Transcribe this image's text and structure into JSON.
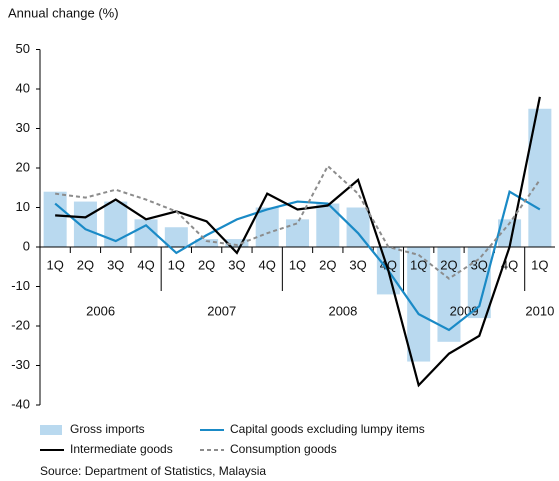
{
  "chart_data": {
    "type": "bar_line",
    "y_axis_label": "Annual change (%)",
    "categories": [
      "1Q",
      "2Q",
      "3Q",
      "4Q",
      "1Q",
      "2Q",
      "3Q",
      "4Q",
      "1Q",
      "2Q",
      "3Q",
      "4Q",
      "1Q",
      "2Q",
      "3Q",
      "4Q",
      "1Q"
    ],
    "years": [
      "2006",
      "2007",
      "2008",
      "2009",
      "2010"
    ],
    "ylim": [
      -40,
      50
    ],
    "yticks": [
      -40,
      -30,
      -20,
      -10,
      0,
      10,
      20,
      30,
      40,
      50
    ],
    "series": [
      {
        "name": "Gross imports",
        "kind": "bar",
        "color": "#b9d9ef",
        "values": [
          14,
          11.5,
          11.5,
          7,
          5,
          2,
          2,
          10,
          7,
          11,
          10,
          -12,
          -29,
          -24,
          -18,
          7,
          35
        ]
      },
      {
        "name": "Capital goods excluding lumpy items",
        "kind": "line",
        "color": "#1a8ac6",
        "values": [
          11,
          4.5,
          1.5,
          5.5,
          -1.5,
          3,
          7,
          9.5,
          11.5,
          11,
          3.5,
          -6,
          -17,
          -21,
          -15,
          14,
          9.5
        ]
      },
      {
        "name": "Intermediate goods",
        "kind": "line",
        "color": "#000000",
        "values": [
          8,
          7.5,
          12,
          7,
          9,
          6.5,
          -1.5,
          13.5,
          9.5,
          10.5,
          17,
          -6,
          -35,
          -27,
          -22.5,
          0,
          38
        ]
      },
      {
        "name": "Consumption goods",
        "kind": "line",
        "color": "#8c8c8c",
        "dashed": true,
        "values": [
          13.5,
          12.5,
          14.5,
          12,
          9,
          1.5,
          0.5,
          3.5,
          6,
          20.5,
          13.5,
          0,
          -2,
          -8,
          -3,
          6,
          17
        ]
      }
    ],
    "source": "Source: Department of Statistics, Malaysia"
  }
}
